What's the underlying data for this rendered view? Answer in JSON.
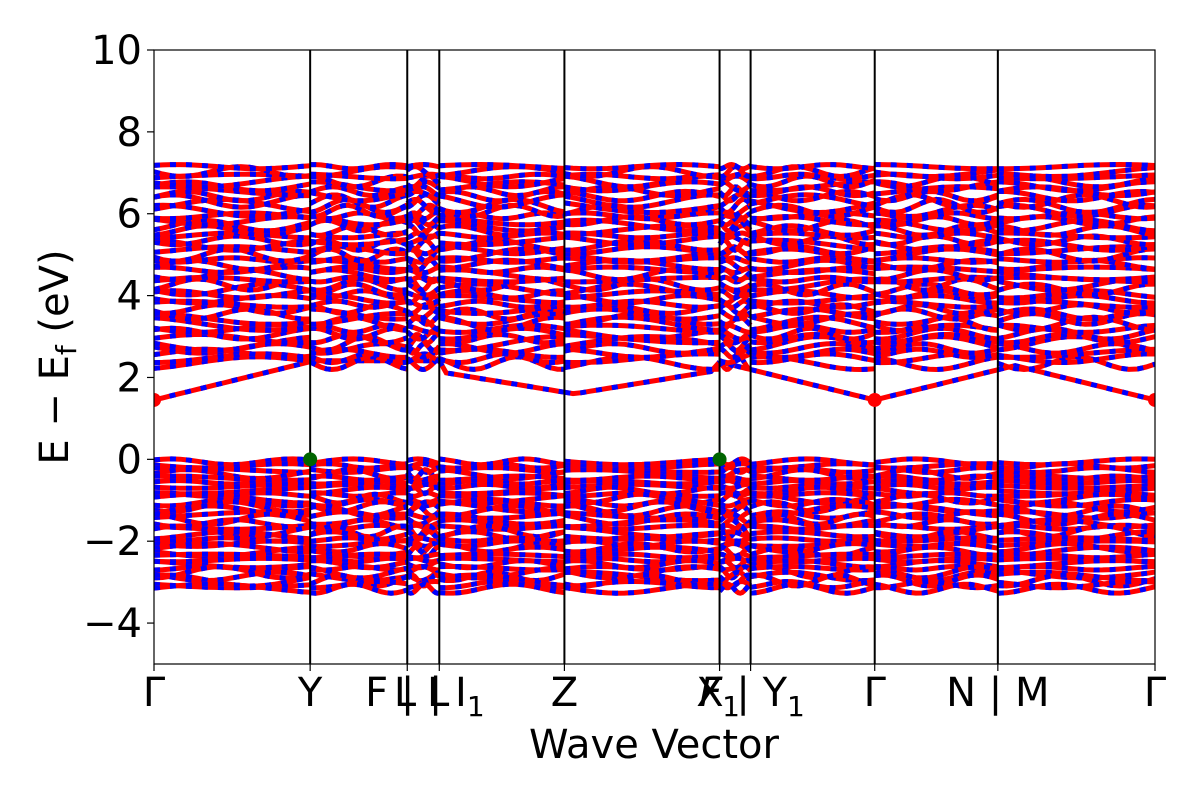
{
  "chart_data": {
    "type": "line",
    "title": "",
    "xlabel": "Wave Vector",
    "ylabel": "E − E",
    "ylabel_sub": "f",
    "ylabel_unit": " (eV)",
    "ylim": [
      -5,
      10
    ],
    "yticks": [
      -4,
      -2,
      0,
      2,
      4,
      6,
      8,
      10
    ],
    "ytick_labels": [
      "−4",
      "−2",
      "0",
      "2",
      "4",
      "6",
      "8",
      "10"
    ],
    "xlim": [
      0,
      1
    ],
    "kpoints": [
      {
        "x": 0.0,
        "label": "Γ"
      },
      {
        "x": 0.156,
        "label": "Y"
      },
      {
        "x": 0.253,
        "label": "F | L"
      },
      {
        "x": 0.285,
        "label": "L | I",
        "sub": "1"
      },
      {
        "x": 0.41,
        "label": "Z"
      },
      {
        "x": 0.565,
        "label": "F",
        "sub": "1",
        "italic": true
      },
      {
        "x": 0.596,
        "label": "X | Y",
        "sub": "1"
      },
      {
        "x": 0.72,
        "label": "Γ"
      },
      {
        "x": 0.843,
        "label": "N | M"
      },
      {
        "x": 1.0,
        "label": "Γ"
      }
    ],
    "spin_colors": {
      "up": "#ff0000",
      "down": "#0000ff"
    },
    "cbm": {
      "energy": 1.45,
      "x": [
        0.0,
        0.72,
        1.0
      ],
      "color": "#ff0000"
    },
    "vbm": {
      "energy": 0.0,
      "x": [
        0.156,
        0.565
      ],
      "color": "#006400"
    },
    "conduction_band_range": [
      1.45,
      7.35
    ],
    "valence_band_range": [
      -3.35,
      0.0
    ]
  }
}
